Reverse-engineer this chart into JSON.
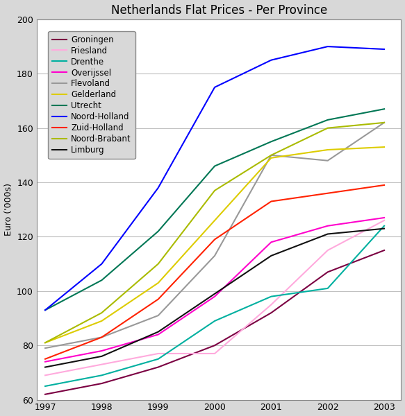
{
  "title": "Netherlands Flat Prices - Per Province",
  "ylabel": "Euro ('000s)",
  "years": [
    1997,
    1998,
    1999,
    2000,
    2001,
    2002,
    2003
  ],
  "series": [
    {
      "name": "Groningen",
      "color": "#7b0042",
      "data": [
        62,
        66,
        72,
        80,
        92,
        107,
        115
      ]
    },
    {
      "name": "Friesland",
      "color": "#ffaadd",
      "data": [
        69,
        73,
        77,
        77,
        95,
        115,
        126
      ]
    },
    {
      "name": "Drenthe",
      "color": "#00b0a0",
      "data": [
        65,
        69,
        75,
        89,
        98,
        101,
        124
      ]
    },
    {
      "name": "Overijssel",
      "color": "#ff00cc",
      "data": [
        74,
        78,
        84,
        98,
        118,
        124,
        127
      ]
    },
    {
      "name": "Flevoland",
      "color": "#999999",
      "data": [
        79,
        83,
        91,
        113,
        150,
        148,
        162
      ]
    },
    {
      "name": "Gelderland",
      "color": "#ddcc00",
      "data": [
        81,
        89,
        103,
        126,
        149,
        152,
        153
      ]
    },
    {
      "name": "Utrecht",
      "color": "#007755",
      "data": [
        93,
        104,
        122,
        146,
        155,
        163,
        167
      ]
    },
    {
      "name": "Noord-Holland",
      "color": "#0000ff",
      "data": [
        93,
        110,
        138,
        175,
        185,
        190,
        189
      ]
    },
    {
      "name": "Zuid-Holland",
      "color": "#ff2200",
      "data": [
        75,
        83,
        97,
        119,
        133,
        136,
        139
      ]
    },
    {
      "name": "Noord-Brabant",
      "color": "#aabb00",
      "data": [
        81,
        92,
        110,
        137,
        150,
        160,
        162
      ]
    },
    {
      "name": "Limburg",
      "color": "#111111",
      "data": [
        72,
        76,
        85,
        99,
        113,
        121,
        123
      ]
    }
  ],
  "ylim": [
    60,
    200
  ],
  "yticks": [
    60,
    80,
    100,
    120,
    140,
    160,
    180,
    200
  ],
  "xticks": [
    1997,
    1998,
    1999,
    2000,
    2001,
    2002,
    2003
  ],
  "xlim": [
    1996.85,
    2003.3
  ],
  "background_color": "#d8d8d8",
  "plot_bg_color": "#ffffff",
  "grid_color": "#c0c0c0",
  "title_fontsize": 12
}
